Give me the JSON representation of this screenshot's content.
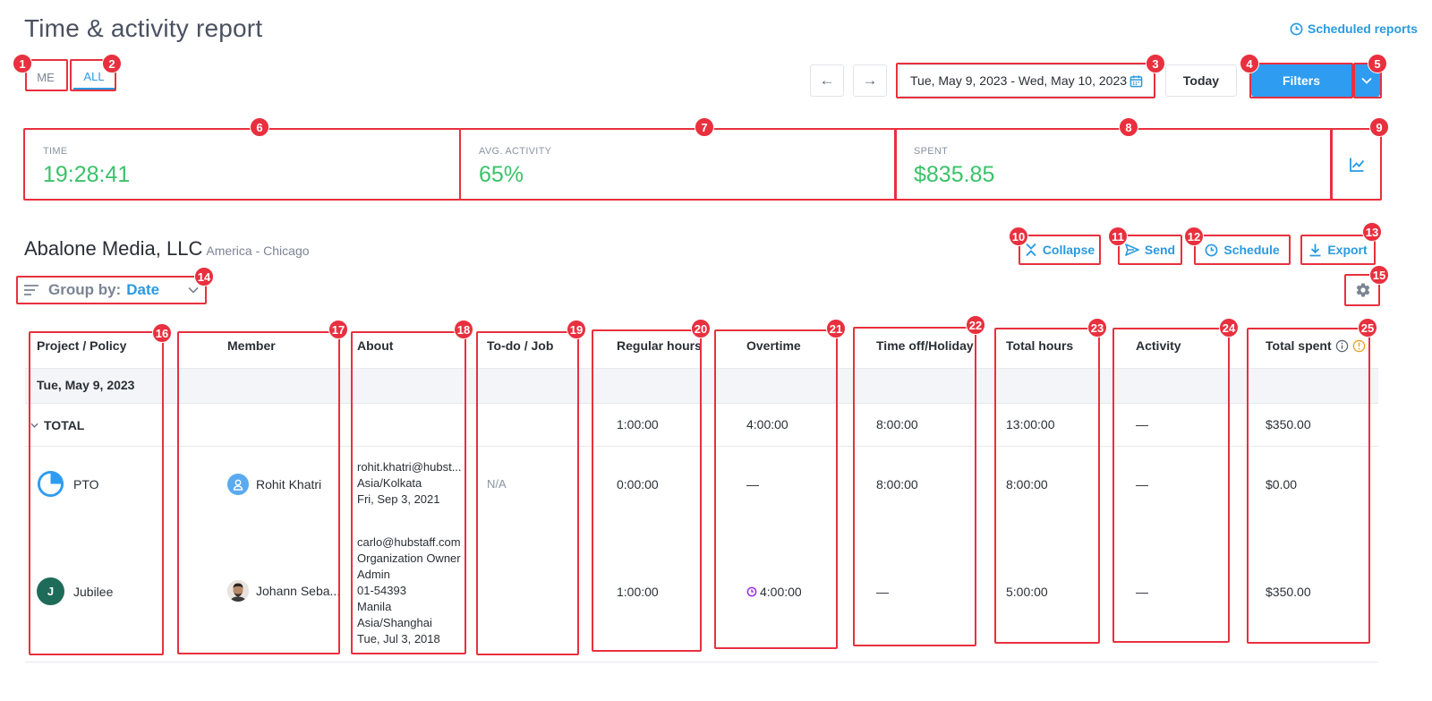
{
  "header": {
    "title": "Time & activity report",
    "scheduled_reports": "Scheduled reports"
  },
  "scope": {
    "me": "ME",
    "all": "ALL"
  },
  "date_nav": {
    "prev": "←",
    "next": "→",
    "range": "Tue, May 9, 2023 - Wed, May 10, 2023",
    "today": "Today"
  },
  "filters": {
    "label": "Filters"
  },
  "stats": {
    "time_label": "TIME",
    "time_value": "19:28:41",
    "activity_label": "AVG. ACTIVITY",
    "activity_value": "65%",
    "spent_label": "SPENT",
    "spent_value": "$835.85"
  },
  "org": {
    "name": "Abalone Media, LLC",
    "timezone": "America - Chicago"
  },
  "actions": {
    "collapse": "Collapse",
    "send": "Send",
    "schedule": "Schedule",
    "export": "Export"
  },
  "groupby": {
    "label": "Group by:",
    "value": "Date"
  },
  "table": {
    "columns": [
      "Project / Policy",
      "Member",
      "About",
      "To-do / Job",
      "Regular hours",
      "Overtime",
      "Time off/Holiday",
      "Total hours",
      "Activity",
      "Total spent"
    ],
    "group_date": "Tue, May 9, 2023",
    "total": {
      "label": "TOTAL",
      "regular": "1:00:00",
      "overtime": "4:00:00",
      "timeoff": "8:00:00",
      "total_hours": "13:00:00",
      "activity": "—",
      "spent": "$350.00"
    },
    "rows": [
      {
        "project": "PTO",
        "member": "Rohit Khatri",
        "about": [
          "rohit.khatri@hubst...",
          "Asia/Kolkata",
          "Fri, Sep 3, 2021"
        ],
        "todo": "N/A",
        "regular": "0:00:00",
        "overtime": "—",
        "timeoff": "8:00:00",
        "total_hours": "8:00:00",
        "activity": "—",
        "spent": "$0.00"
      },
      {
        "project": "Jubilee",
        "project_initial": "J",
        "member": "Johann Seba...",
        "about": [
          "carlo@hubstaff.com",
          "Organization Owner",
          "Admin",
          "01-54393",
          "Manila",
          "Asia/Shanghai",
          "Tue, Jul 3, 2018"
        ],
        "todo": "",
        "regular": "1:00:00",
        "overtime": "4:00:00",
        "timeoff": "—",
        "total_hours": "5:00:00",
        "activity": "—",
        "spent": "$350.00"
      }
    ]
  },
  "annotations": [
    "1",
    "2",
    "3",
    "4",
    "5",
    "6",
    "7",
    "8",
    "9",
    "10",
    "11",
    "12",
    "13",
    "14",
    "15",
    "16",
    "17",
    "18",
    "19",
    "20",
    "21",
    "22",
    "23",
    "24",
    "25"
  ],
  "colors": {
    "accent": "#2e9cf0",
    "green": "#3ac26a",
    "annotation": "#e8303e"
  }
}
